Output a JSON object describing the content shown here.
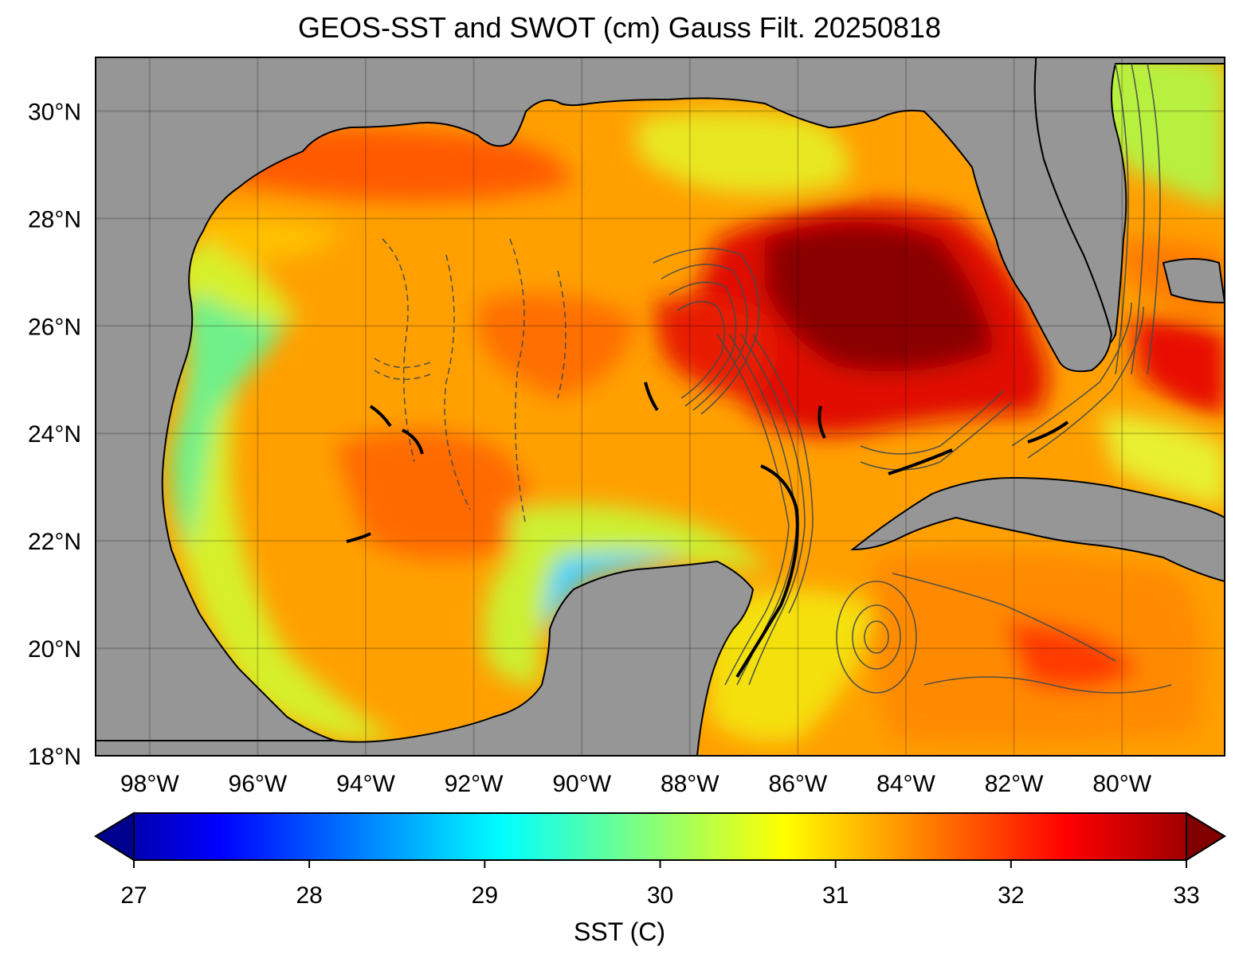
{
  "title": "GEOS-SST  and SWOT (cm) Gauss Filt. 20250818",
  "map": {
    "lon_range": [
      -99,
      -78.1
    ],
    "lat_range": [
      18,
      31
    ],
    "lon_ticks": [
      {
        "value": -98,
        "label": "98°W"
      },
      {
        "value": -96,
        "label": "96°W"
      },
      {
        "value": -94,
        "label": "94°W"
      },
      {
        "value": -92,
        "label": "92°W"
      },
      {
        "value": -90,
        "label": "90°W"
      },
      {
        "value": -88,
        "label": "88°W"
      },
      {
        "value": -86,
        "label": "86°W"
      },
      {
        "value": -84,
        "label": "84°W"
      },
      {
        "value": -82,
        "label": "82°W"
      },
      {
        "value": -80,
        "label": "80°W"
      }
    ],
    "lat_ticks": [
      {
        "value": 18,
        "label": "18°N"
      },
      {
        "value": 20,
        "label": "20°N"
      },
      {
        "value": 22,
        "label": "22°N"
      },
      {
        "value": 24,
        "label": "24°N"
      },
      {
        "value": 26,
        "label": "26°N"
      },
      {
        "value": 28,
        "label": "28°N"
      },
      {
        "value": 30,
        "label": "30°N"
      }
    ],
    "land_color": "#969696",
    "grid": true
  },
  "colorbar": {
    "label": "SST (C)",
    "colormap": "jet",
    "range": [
      27,
      33
    ],
    "extend": "both",
    "ticks": [
      {
        "value": 27,
        "label": "27"
      },
      {
        "value": 28,
        "label": "28"
      },
      {
        "value": 29,
        "label": "29"
      },
      {
        "value": 30,
        "label": "30"
      },
      {
        "value": 31,
        "label": "31"
      },
      {
        "value": 32,
        "label": "32"
      },
      {
        "value": 33,
        "label": "33"
      }
    ]
  }
}
